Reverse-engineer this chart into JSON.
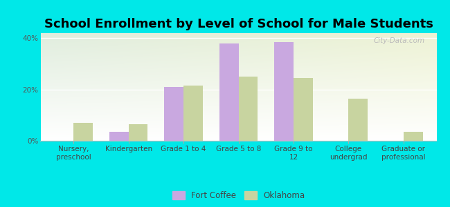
{
  "title": "School Enrollment by Level of School for Male Students",
  "categories": [
    "Nursery,\npreschool",
    "Kindergarten",
    "Grade 1 to 4",
    "Grade 5 to 8",
    "Grade 9 to\n12",
    "College\nundergrad",
    "Graduate or\nprofessional"
  ],
  "fort_coffee": [
    0.0,
    3.5,
    21.0,
    38.0,
    38.5,
    0.0,
    0.0
  ],
  "oklahoma": [
    7.0,
    6.5,
    21.5,
    25.0,
    24.5,
    16.5,
    3.5
  ],
  "bar_color_fc": "#c9a8e0",
  "bar_color_ok": "#c8d4a0",
  "ylim": [
    0,
    42
  ],
  "yticks": [
    0,
    20,
    40
  ],
  "ytick_labels": [
    "0%",
    "20%",
    "40%"
  ],
  "background_color": "#00e8e8",
  "bar_width": 0.35,
  "legend_fc": "Fort Coffee",
  "legend_ok": "Oklahoma",
  "title_fontsize": 13,
  "tick_fontsize": 7.5,
  "watermark": "City-Data.com"
}
